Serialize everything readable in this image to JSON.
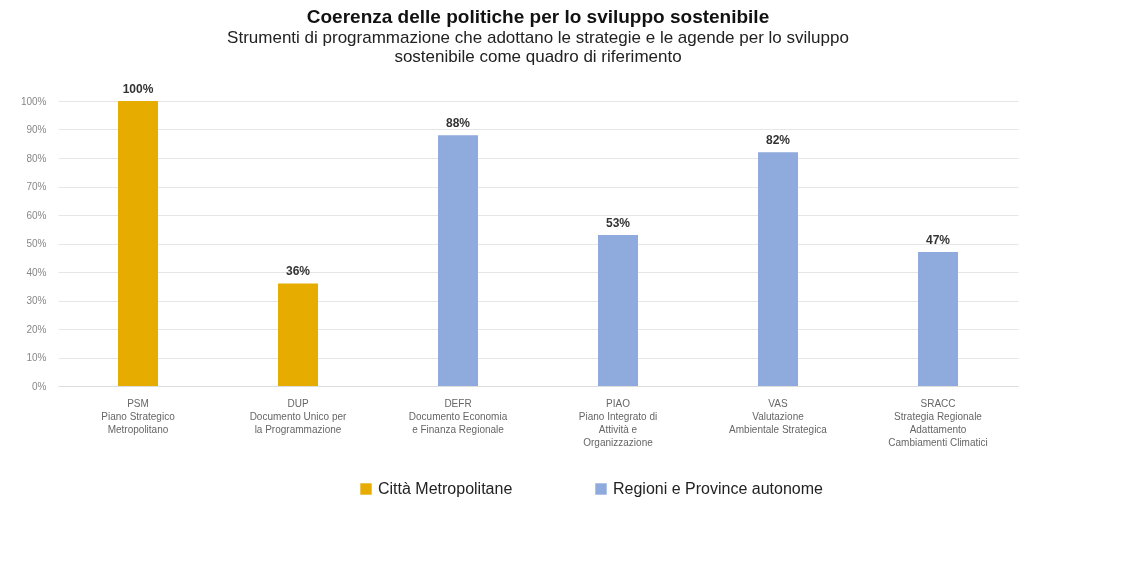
{
  "chart_data": {
    "type": "bar",
    "title": "Coerenza delle politiche per lo sviluppo sostenibile",
    "subtitle": "Strumenti di programmazione che adottano le strategie e le agende per lo sviluppo sostenibile come quadro di riferimento",
    "categories": [
      "PSM\nPiano Strategico\nMetropolitano",
      "DUP\nDocumento Unico per\nla Programmazione",
      "DEFR\nDocumento Economia\ne Finanza Regionale",
      "PIAO\nPiano Integrato di\nAttività e\nOrganizzazione",
      "VAS\nValutazione\nAmbientale Strategica",
      "SRACC\nStrategia Regionale\nAdattamento\nCambiamenti Climatici"
    ],
    "series": [
      {
        "name": "Città Metropolitane",
        "color": "#e6ac00",
        "values": [
          100,
          36,
          null,
          null,
          null,
          null
        ],
        "value_labels": [
          "100%",
          "36%",
          null,
          null,
          null,
          null
        ]
      },
      {
        "name": "Regioni e Province autonome",
        "color": "#8faadc",
        "values": [
          null,
          null,
          88,
          53,
          82,
          47
        ],
        "value_labels": [
          null,
          null,
          "88%",
          "53%",
          "82%",
          "47%"
        ]
      }
    ],
    "ylim": [
      0,
      100
    ],
    "yticks": [
      {
        "value": 0,
        "label": "0%"
      },
      {
        "value": 10,
        "label": "10%"
      },
      {
        "value": 20,
        "label": "20%"
      },
      {
        "value": 30,
        "label": "30%"
      },
      {
        "value": 40,
        "label": "40%"
      },
      {
        "value": 50,
        "label": "50%"
      },
      {
        "value": 60,
        "label": "60%"
      },
      {
        "value": 70,
        "label": "70%"
      },
      {
        "value": 80,
        "label": "80%"
      },
      {
        "value": 90,
        "label": "90%"
      },
      {
        "value": 100,
        "label": "100%"
      }
    ],
    "grid": "y",
    "legend": "bottom"
  }
}
